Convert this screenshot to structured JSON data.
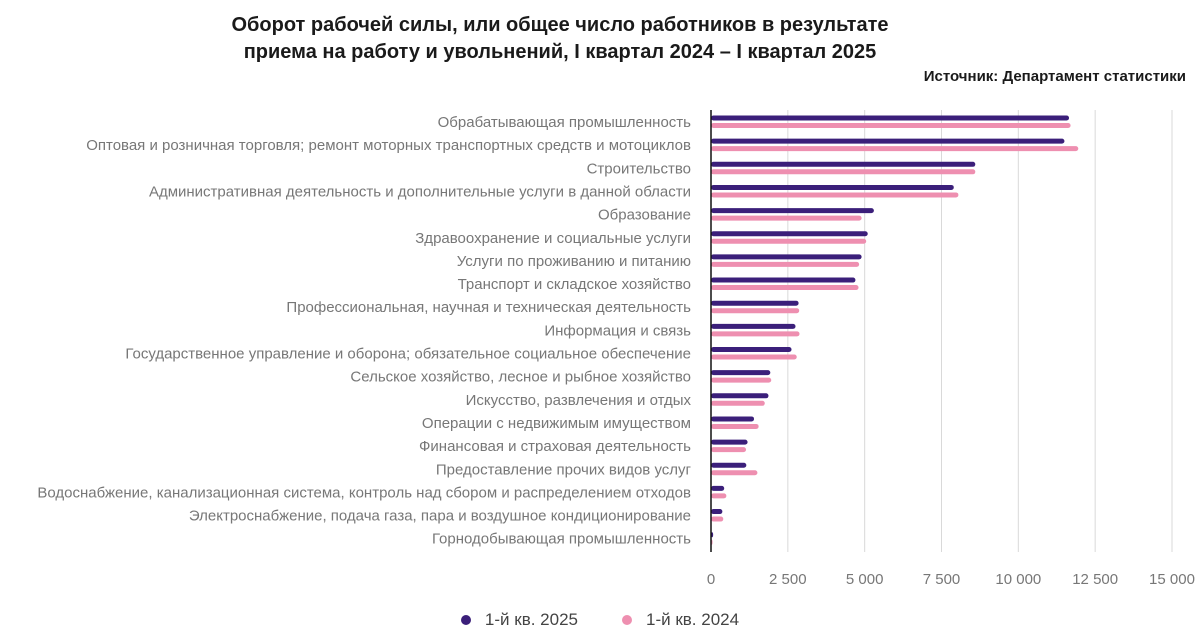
{
  "title_line1": "Оборот рабочей силы, или общее число работников в результате",
  "title_line2": "приема на работу и увольнений, I квартал 2024 – I квартал 2025",
  "source": "Источник: Департамент статистики",
  "colors": {
    "series_2025": "#3b1f7a",
    "series_2024": "#ee8fb0",
    "grid": "#d9d9d9",
    "axis": "#111111",
    "label": "#777777"
  },
  "chart_data": {
    "type": "bar",
    "orientation": "horizontal",
    "categories": [
      "Обрабатывающая промышленность",
      "Оптовая и розничная торговля; ремонт моторных транспортных средств и мотоциклов",
      "Строительство",
      "Административная деятельность и дополнительные услуги в данной области",
      "Образование",
      "Здравоохранение и социальные услуги",
      "Услуги по проживанию и питанию",
      "Транспорт и складское хозяйство",
      "Профессиональная, научная и техническая деятельность",
      "Информация и связь",
      "Государственное управление и оборона; обязательное социальное обеспечение",
      "Сельское хозяйство, лесное и рыбное хозяйство",
      "Искусство, развлечения и отдых",
      "Операции с недвижимым имуществом",
      "Финансовая и страховая деятельность",
      "Предоставление прочих видов услуг",
      "Водоснабжение, канализационная система, контроль над сбором и распределением отходов",
      "Электроснабжение, подача газа, пара и воздушное кондиционирование",
      "Горнодобывающая промышленность"
    ],
    "series": [
      {
        "name": "1-й кв. 2025",
        "values": [
          11650,
          11500,
          8600,
          7900,
          5300,
          5100,
          4900,
          4700,
          2850,
          2750,
          2620,
          1930,
          1870,
          1400,
          1190,
          1150,
          430,
          370,
          70
        ]
      },
      {
        "name": "1-й кв. 2024",
        "values": [
          11700,
          11950,
          8600,
          8050,
          4900,
          5050,
          4820,
          4800,
          2870,
          2880,
          2790,
          1960,
          1750,
          1550,
          1140,
          1510,
          500,
          400,
          50
        ]
      }
    ],
    "xlim": [
      0,
      15000
    ],
    "xticks": [
      0,
      2500,
      5000,
      7500,
      10000,
      12500,
      15000
    ],
    "xtick_labels": [
      "0",
      "2 500",
      "5 000",
      "7 500",
      "10 000",
      "12 500",
      "15 000"
    ],
    "grid": true,
    "legend_position": "bottom"
  }
}
